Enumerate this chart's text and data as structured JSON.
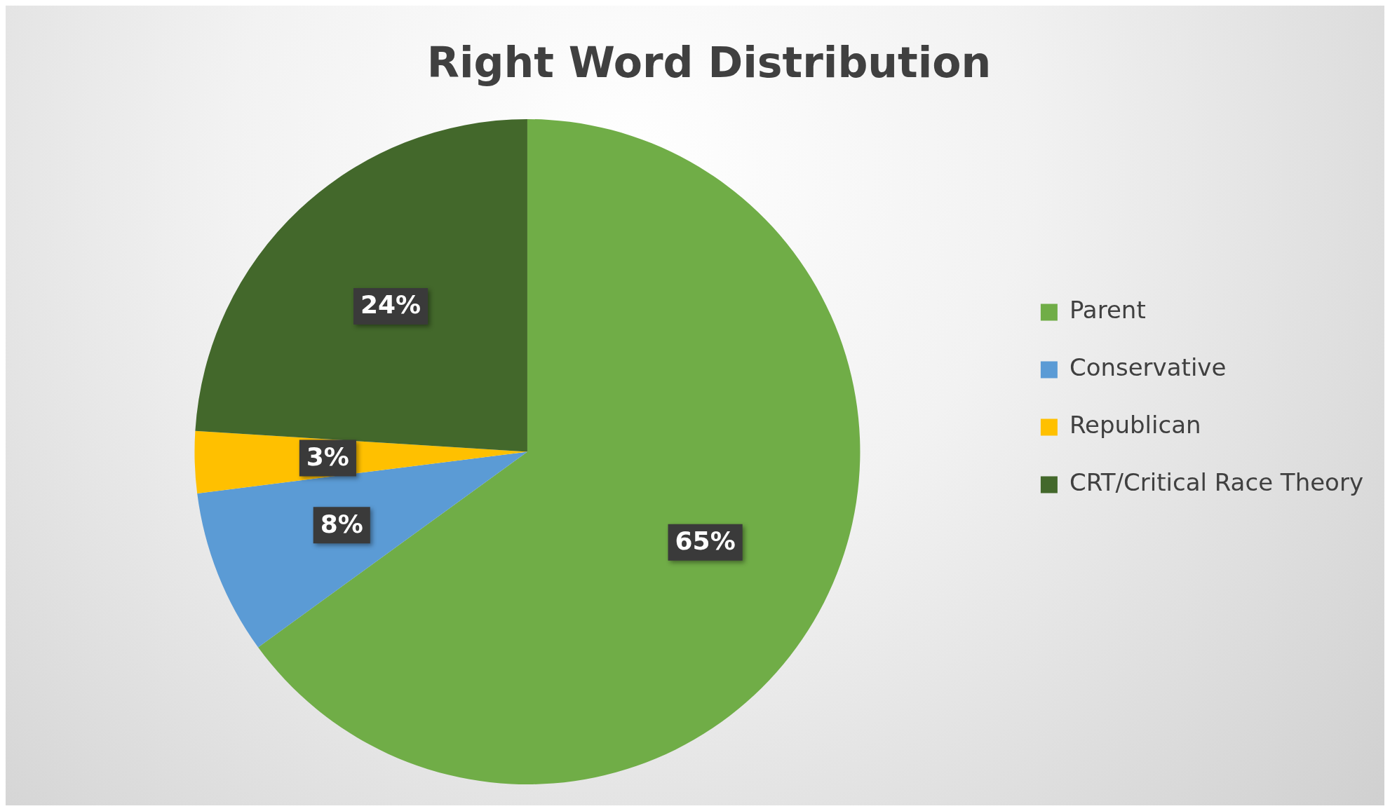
{
  "chart_data": {
    "type": "pie",
    "title": "Right Word Distribution",
    "categories": [
      "Parent",
      "Conservative",
      "Republican",
      "CRT/Critical Race Theory"
    ],
    "values": [
      65,
      8,
      3,
      24
    ],
    "colors": [
      "#70ad47",
      "#5b9bd5",
      "#ffc000",
      "#43682b"
    ],
    "value_labels": [
      "65%",
      "8%",
      "3%",
      "24%"
    ],
    "legend": "right"
  }
}
